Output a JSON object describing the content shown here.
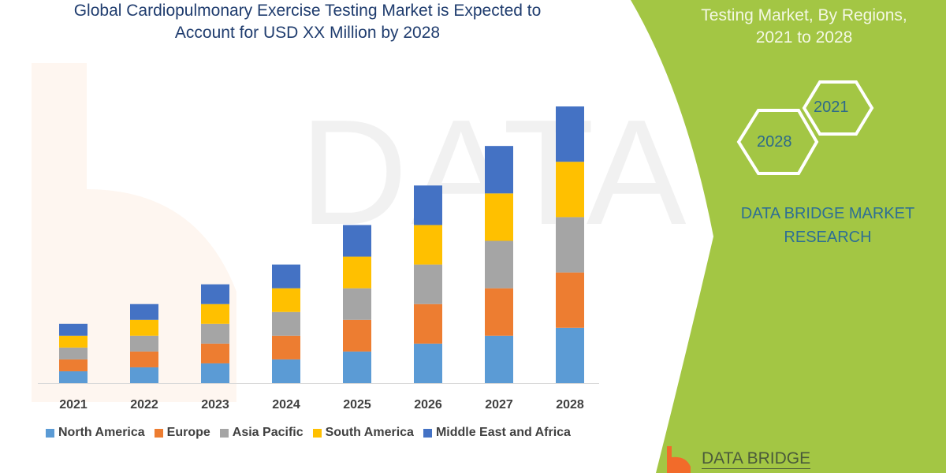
{
  "title": {
    "line1": "Global Cardiopulmonary Exercise Testing Market is Expected to",
    "line2": "Account for USD XX Million by 2028"
  },
  "panel": {
    "title_line1": "Testing Market, By Regions,",
    "title_line2": "2021 to 2028",
    "hex_2021": "2021",
    "hex_2028": "2028",
    "brand_line1": "DATA BRIDGE MARKET",
    "brand_line2": "RESEARCH",
    "logo_text": "DATA BRIDGE",
    "background_color": "#a3c644"
  },
  "watermark": "DATA BRIDGE",
  "chart_data": {
    "type": "bar",
    "stacked": true,
    "categories": [
      "2021",
      "2022",
      "2023",
      "2024",
      "2025",
      "2026",
      "2027",
      "2028"
    ],
    "series": [
      {
        "name": "North America",
        "color": "#5b9bd5",
        "values": [
          15,
          20,
          25,
          30,
          40,
          50,
          60,
          70
        ]
      },
      {
        "name": "Europe",
        "color": "#ed7d31",
        "values": [
          15,
          20,
          25,
          30,
          40,
          50,
          60,
          70
        ]
      },
      {
        "name": "Asia Pacific",
        "color": "#a5a5a5",
        "values": [
          15,
          20,
          25,
          30,
          40,
          50,
          60,
          70
        ]
      },
      {
        "name": "South America",
        "color": "#ffc000",
        "values": [
          15,
          20,
          25,
          30,
          40,
          50,
          60,
          70
        ]
      },
      {
        "name": "Middle East and Africa",
        "color": "#4472c4",
        "values": [
          15,
          20,
          25,
          30,
          40,
          50,
          60,
          70
        ]
      }
    ],
    "ylim": [
      0,
      360
    ],
    "y_axis_shown": false,
    "grid": false,
    "legend": "bottom"
  }
}
